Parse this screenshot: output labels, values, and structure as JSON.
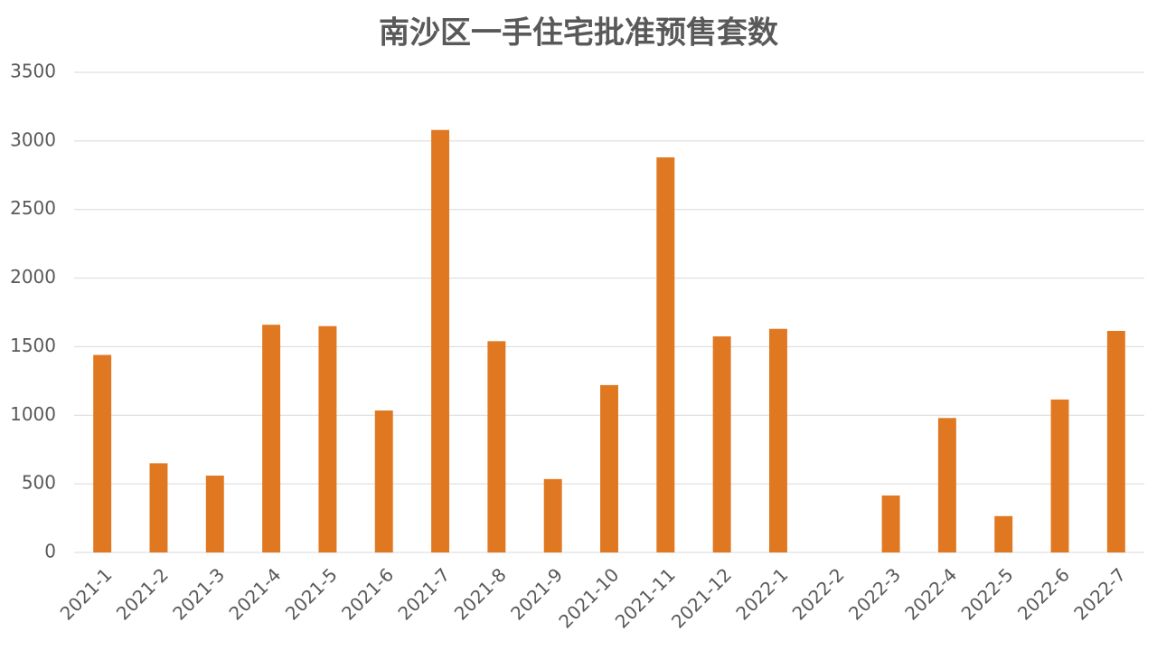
{
  "chart_data": {
    "type": "bar",
    "title": "南沙区一手住宅批准预售套数",
    "categories": [
      "2021-1",
      "2021-2",
      "2021-3",
      "2021-4",
      "2021-5",
      "2021-6",
      "2021-7",
      "2021-8",
      "2021-9",
      "2021-10",
      "2021-11",
      "2021-12",
      "2022-1",
      "2022-2",
      "2022-3",
      "2022-4",
      "2022-5",
      "2022-6",
      "2022-7"
    ],
    "values": [
      1440,
      650,
      560,
      1660,
      1650,
      1035,
      3080,
      1540,
      535,
      1220,
      2880,
      1575,
      1630,
      0,
      415,
      980,
      265,
      1115,
      1615
    ],
    "color": "#e07822",
    "ylim": [
      0,
      3500
    ],
    "yticks": [
      0,
      500,
      1000,
      1500,
      2000,
      2500,
      3000,
      3500
    ],
    "grid": true
  }
}
